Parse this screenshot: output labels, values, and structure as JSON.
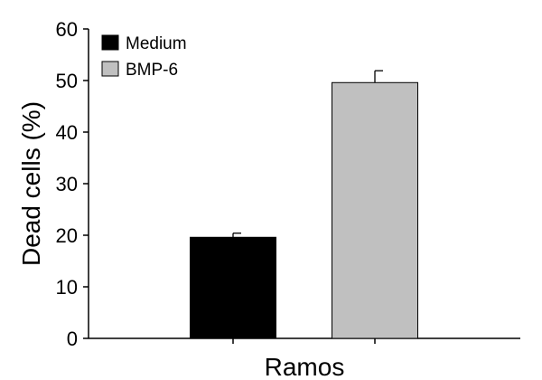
{
  "chart_data": {
    "type": "bar",
    "title": "",
    "xlabel": "Ramos",
    "ylabel": "Dead cells (%)",
    "ylim": [
      0,
      60
    ],
    "yticks": [
      0,
      10,
      20,
      30,
      40,
      50,
      60
    ],
    "grid": false,
    "legend_position": "top-left",
    "categories": [
      "Ramos"
    ],
    "series": [
      {
        "name": "Medium",
        "values": [
          19.6
        ],
        "error": [
          0.8
        ],
        "color": "#000000"
      },
      {
        "name": "BMP-6",
        "values": [
          49.6
        ],
        "error": [
          2.3
        ],
        "color": "#c0c0c0"
      }
    ]
  }
}
